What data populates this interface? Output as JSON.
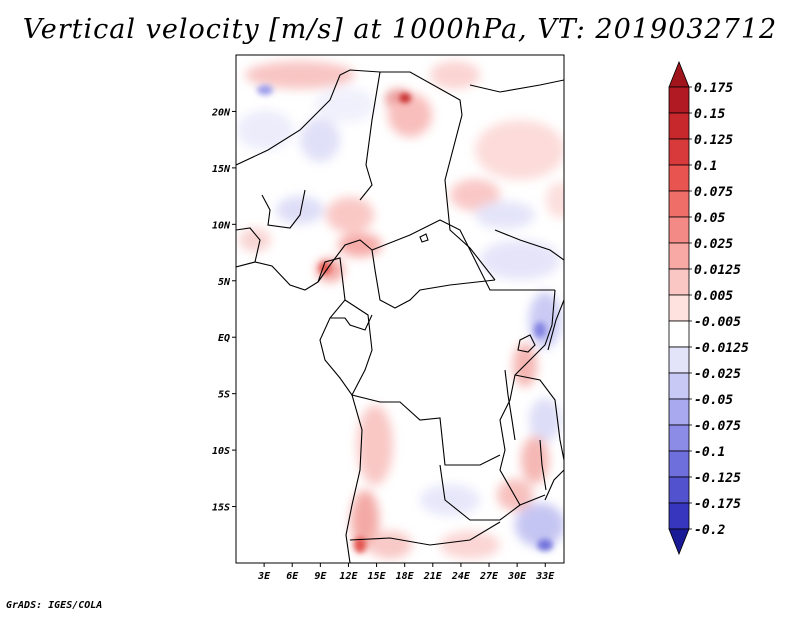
{
  "title": "Vertical velocity [m/s] at 1000hPa, VT: 2019032712",
  "credit": "GrADS: IGES/COLA",
  "map": {
    "lon_range": [
      0,
      35
    ],
    "lat_range": [
      -20,
      25
    ],
    "lat_ticks": [
      {
        "lat": 20,
        "label": "20N"
      },
      {
        "lat": 15,
        "label": "15N"
      },
      {
        "lat": 10,
        "label": "10N"
      },
      {
        "lat": 5,
        "label": "5N"
      },
      {
        "lat": 0,
        "label": "EQ"
      },
      {
        "lat": -5,
        "label": "5S"
      },
      {
        "lat": -10,
        "label": "10S"
      },
      {
        "lat": -15,
        "label": "15S"
      }
    ],
    "lon_ticks": [
      {
        "lon": 3,
        "label": "3E"
      },
      {
        "lon": 6,
        "label": "6E"
      },
      {
        "lon": 9,
        "label": "9E"
      },
      {
        "lon": 12,
        "label": "12E"
      },
      {
        "lon": 15,
        "label": "15E"
      },
      {
        "lon": 18,
        "label": "18E"
      },
      {
        "lon": 21,
        "label": "21E"
      },
      {
        "lon": 24,
        "label": "24E"
      },
      {
        "lon": 27,
        "label": "27E"
      },
      {
        "lon": 30,
        "label": "30E"
      },
      {
        "lon": 33,
        "label": "33E"
      }
    ]
  },
  "colorbar": {
    "levels": [
      {
        "label": "0.175",
        "color": "#b11a22"
      },
      {
        "label": "0.15",
        "color": "#c7282c"
      },
      {
        "label": "0.125",
        "color": "#d8393a"
      },
      {
        "label": "0.1",
        "color": "#e85450"
      },
      {
        "label": "0.075",
        "color": "#ef6e68"
      },
      {
        "label": "0.05",
        "color": "#f38a85"
      },
      {
        "label": "0.025",
        "color": "#f8a9a5"
      },
      {
        "label": "0.0125",
        "color": "#fbc7c4"
      },
      {
        "label": "0.005",
        "color": "#fde2e0"
      },
      {
        "label": "-0.005",
        "color": "#ffffff"
      },
      {
        "label": "-0.0125",
        "color": "#e3e3fa"
      },
      {
        "label": "-0.025",
        "color": "#c9c9f6"
      },
      {
        "label": "-0.05",
        "color": "#a9a9ef"
      },
      {
        "label": "-0.075",
        "color": "#8c8ce6"
      },
      {
        "label": "-0.1",
        "color": "#6e6edc"
      },
      {
        "label": "-0.125",
        "color": "#5252cf"
      },
      {
        "label": "-0.175",
        "color": "#3636bf"
      },
      {
        "label": "-0.2",
        "color": "#2222a8"
      }
    ],
    "top_arrow_color": "#a0141c",
    "bottom_arrow_color": "#1a1a96"
  }
}
